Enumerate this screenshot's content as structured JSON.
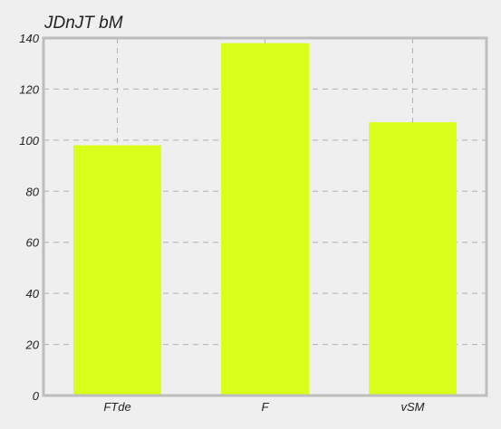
{
  "chart_data": {
    "type": "bar",
    "title": "JDnJT bM",
    "xlabel": "",
    "ylabel": "",
    "categories": [
      "FTde",
      "F",
      "vSM"
    ],
    "values": [
      98,
      138,
      107
    ],
    "ylim": [
      0,
      140
    ],
    "yticks": [
      0,
      20,
      40,
      60,
      80,
      100,
      120,
      140
    ],
    "grid": true,
    "legend": "none",
    "colors": {
      "bar": "#d9ff1a",
      "background": "#efefef",
      "axis": "#bdbdbd",
      "grid": "#b0b0b0"
    }
  }
}
